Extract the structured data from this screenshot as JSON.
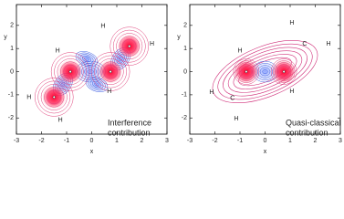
{
  "chart_data": [
    {
      "type": "contour",
      "xlabel": "x",
      "ylabel": "y",
      "xlim": [
        -3,
        3
      ],
      "ylim": [
        -2.7,
        2.9
      ],
      "xticks": [
        -3,
        -2,
        -1,
        0,
        1,
        2,
        3
      ],
      "yticks": [
        -2,
        -1,
        0,
        1,
        2
      ],
      "atom_labels": [
        "H",
        "H",
        "H",
        "H",
        "H",
        "H"
      ],
      "caption": [
        "Interference",
        "contribution"
      ]
    },
    {
      "type": "contour",
      "xlabel": "x",
      "ylabel": "y",
      "xlim": [
        -3,
        3
      ],
      "ylim": [
        -2.7,
        2.9
      ],
      "xticks": [
        -3,
        -2,
        -1,
        0,
        1,
        2,
        3
      ],
      "yticks": [
        -2,
        -1,
        0,
        1,
        2
      ],
      "atom_labels": [
        "H",
        "H",
        "H",
        "H",
        "H",
        "H",
        "C",
        "C"
      ],
      "caption": [
        "Quasi-classical",
        "contribution"
      ]
    }
  ]
}
